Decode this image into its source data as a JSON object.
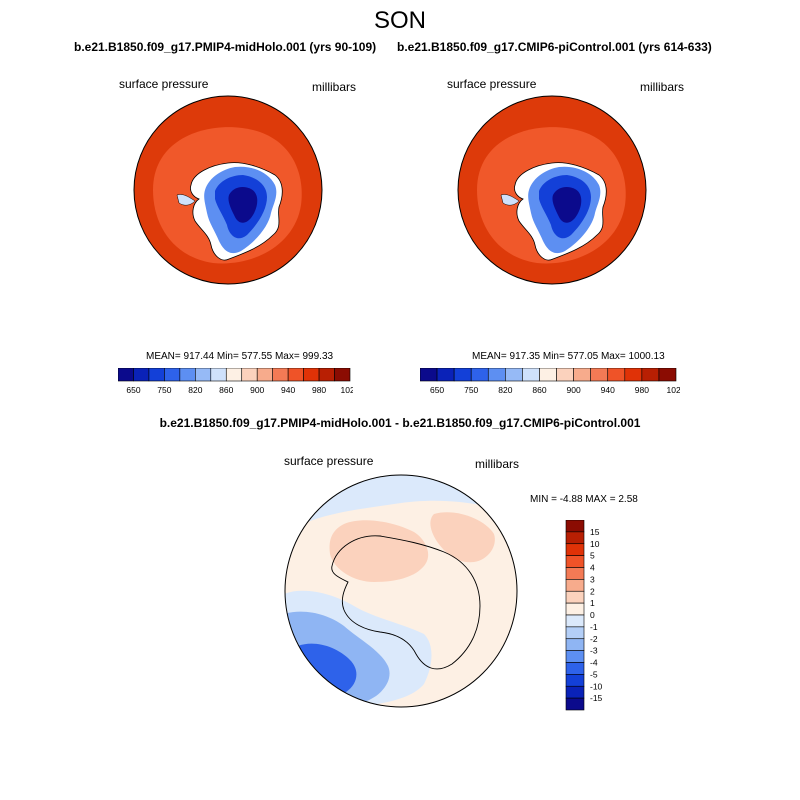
{
  "figure": {
    "season": "SON",
    "left_case": "b.e21.B1850.f09_g17.PMIP4-midHolo.001 (yrs 90-109)",
    "right_case": "b.e21.B1850.f09_g17.CMIP6-piControl.001 (yrs 614-633)",
    "diff_title": "b.e21.B1850.f09_g17.PMIP4-midHolo.001 - b.e21.B1850.f09_g17.CMIP6-piControl.001"
  },
  "panels": {
    "left": {
      "variable": "surface pressure",
      "units": "millibars",
      "stats": "MEAN= 917.44  Min= 577.55  Max= 999.33"
    },
    "right": {
      "variable": "surface pressure",
      "units": "millibars",
      "stats": "MEAN= 917.35  Min= 577.05  Max= 1000.13"
    },
    "diff": {
      "variable": "surface pressure",
      "units": "millibars",
      "stats": "MIN =  -4.88 MAX =   2.58"
    }
  },
  "colorbar_top": {
    "labels": [
      "650",
      "750",
      "820",
      "860",
      "900",
      "940",
      "980",
      "1020"
    ],
    "colors": [
      "#0b0a8c",
      "#0a22b8",
      "#1340d8",
      "#2e62ea",
      "#5d8ff2",
      "#96baf6",
      "#cfe1fb",
      "#fdf0e4",
      "#fbd2bd",
      "#f7ab8c",
      "#f37a55",
      "#ef5328",
      "#e03207",
      "#b81f03",
      "#8b0c02"
    ]
  },
  "colorbar_diff": {
    "labels": [
      "15",
      "10",
      "5",
      "4",
      "3",
      "2",
      "1",
      "0",
      "-1",
      "-2",
      "-3",
      "-4",
      "-5",
      "-10",
      "-15"
    ],
    "colors": [
      "#8b0c02",
      "#b81f03",
      "#e03207",
      "#ef5328",
      "#f37a55",
      "#f7ab8c",
      "#fbd2bd",
      "#fdf0e4",
      "#dbe9fb",
      "#b4cff7",
      "#8fb5f3",
      "#5d8ff2",
      "#2e62ea",
      "#1340d8",
      "#0a22b8",
      "#0b0a8c"
    ]
  }
}
